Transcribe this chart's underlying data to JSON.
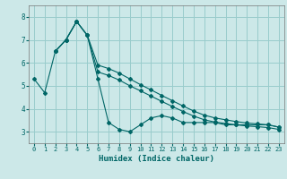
{
  "background_color": "#cce8e8",
  "grid_color": "#99cccc",
  "line_color": "#006666",
  "xlabel": "Humidex (Indice chaleur)",
  "xlim": [
    -0.5,
    23.5
  ],
  "ylim": [
    2.5,
    8.5
  ],
  "yticks": [
    3,
    4,
    5,
    6,
    7,
    8
  ],
  "xticks": [
    0,
    1,
    2,
    3,
    4,
    5,
    6,
    7,
    8,
    9,
    10,
    11,
    12,
    13,
    14,
    15,
    16,
    17,
    18,
    19,
    20,
    21,
    22,
    23
  ],
  "line1_x": [
    0,
    1,
    2,
    3,
    4,
    5,
    6,
    7,
    8,
    9,
    10,
    11,
    12,
    13,
    14,
    15,
    16,
    17,
    18,
    19,
    20,
    21,
    22,
    23
  ],
  "line1_y": [
    5.3,
    4.7,
    6.5,
    7.0,
    7.8,
    7.2,
    5.3,
    3.4,
    3.1,
    3.0,
    3.3,
    3.6,
    3.7,
    3.6,
    3.4,
    3.4,
    3.4,
    3.4,
    3.3,
    3.3,
    3.3,
    3.3,
    3.3,
    3.2
  ],
  "line2_x": [
    2,
    3,
    4,
    5,
    6,
    7,
    8,
    9,
    10,
    11,
    12,
    13,
    14,
    15,
    16,
    17,
    18,
    19,
    20,
    21,
    22,
    23
  ],
  "line2_y": [
    6.5,
    7.0,
    7.8,
    7.2,
    5.9,
    5.75,
    5.55,
    5.3,
    5.05,
    4.82,
    4.58,
    4.35,
    4.12,
    3.9,
    3.72,
    3.6,
    3.52,
    3.44,
    3.38,
    3.34,
    3.3,
    3.2
  ],
  "line3_x": [
    2,
    3,
    4,
    5,
    6,
    7,
    8,
    9,
    10,
    11,
    12,
    13,
    14,
    15,
    16,
    17,
    18,
    19,
    20,
    21,
    22,
    23
  ],
  "line3_y": [
    6.5,
    7.0,
    7.8,
    7.2,
    5.6,
    5.45,
    5.25,
    5.0,
    4.78,
    4.55,
    4.32,
    4.1,
    3.88,
    3.68,
    3.52,
    3.42,
    3.36,
    3.3,
    3.25,
    3.22,
    3.18,
    3.1
  ]
}
